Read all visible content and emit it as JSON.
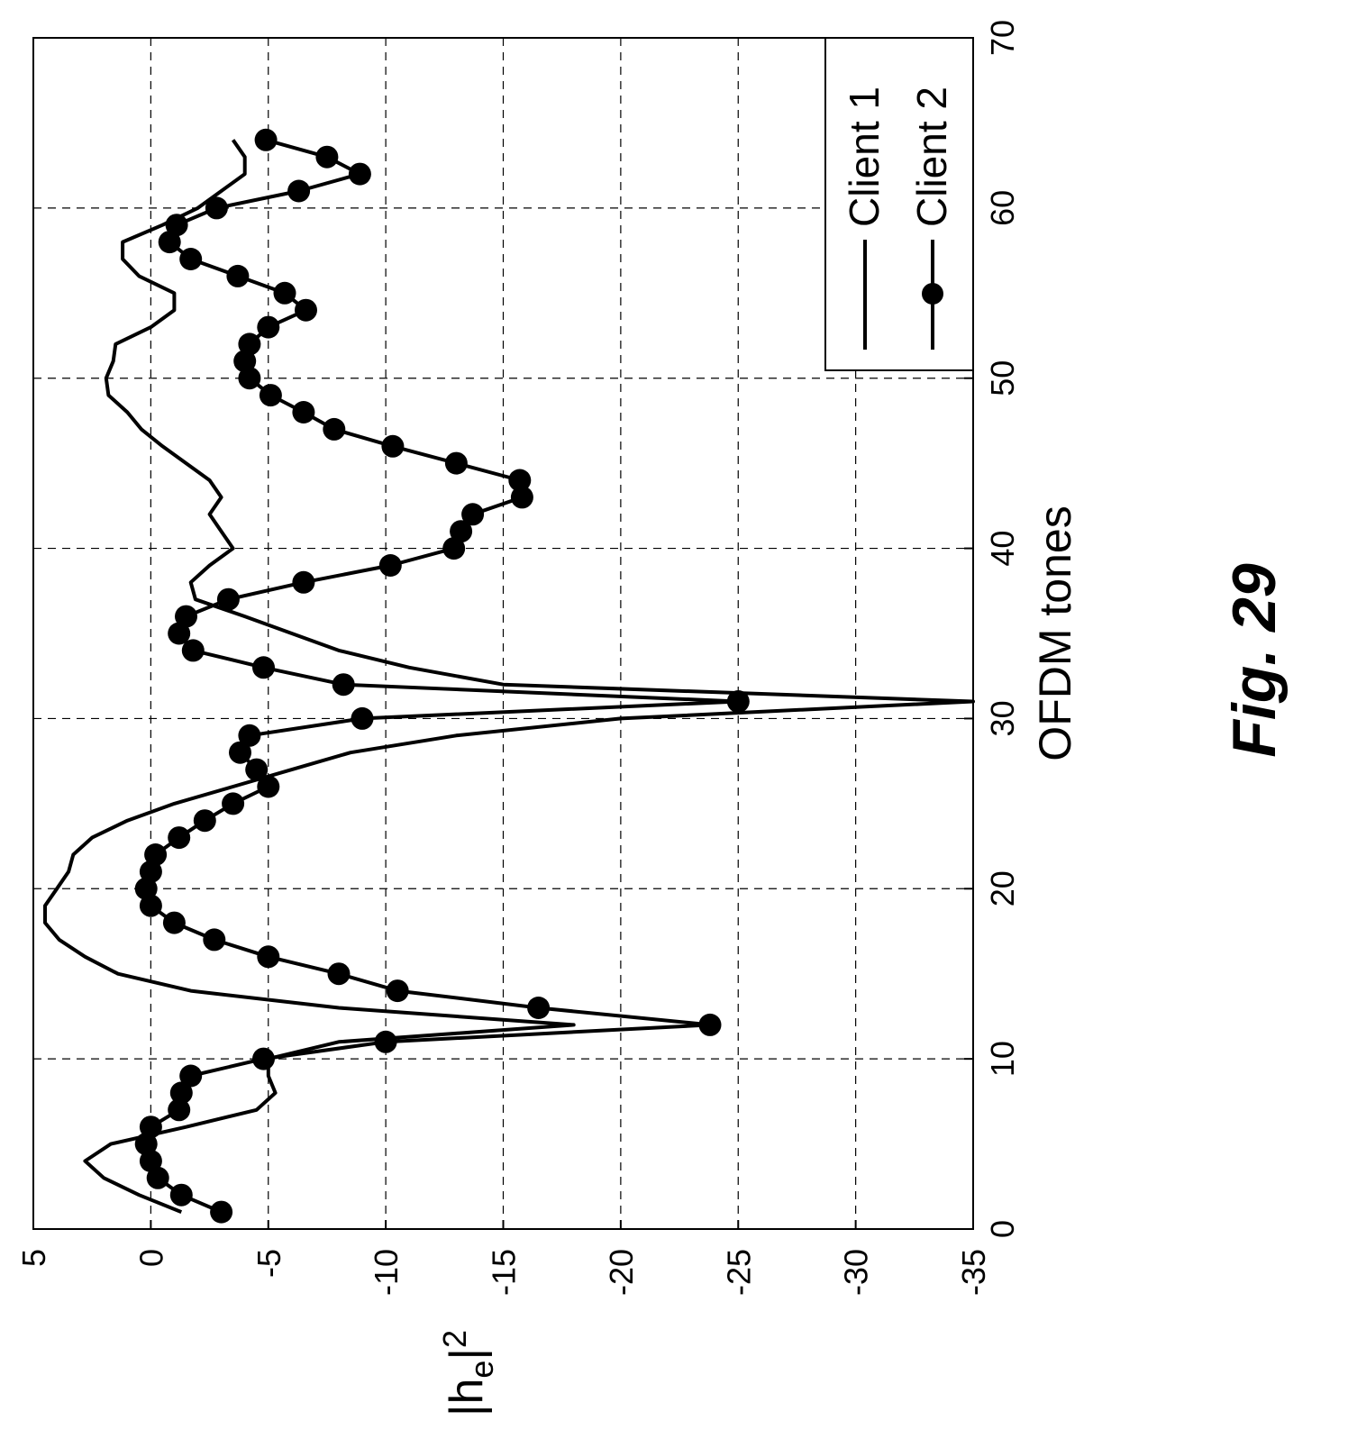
{
  "figure_label": "Fig. 29",
  "chart_data": {
    "type": "line",
    "orientation": "rotated-90-clockwise",
    "xlabel": "OFDM tones",
    "ylabel": "|h_e|^2",
    "ylabel_base": "|h",
    "ylabel_sub": "e",
    "ylabel_tail": "|",
    "ylabel_sup": "2",
    "xlim": [
      0,
      70
    ],
    "ylim": [
      -35,
      5
    ],
    "xticks": [
      0,
      10,
      20,
      30,
      40,
      50,
      60,
      70
    ],
    "yticks": [
      5,
      0,
      -5,
      -10,
      -15,
      -20,
      -25,
      -30,
      -35
    ],
    "grid": true,
    "legend_position": "top-right",
    "colors": {
      "line": "#000000",
      "grid": "#000000",
      "background": "#ffffff"
    },
    "series": [
      {
        "name": "Client 1",
        "marker": "none",
        "x": [
          1,
          2,
          3,
          4,
          5,
          6,
          7,
          8,
          9,
          10,
          11,
          12,
          13,
          14,
          15,
          16,
          17,
          18,
          19,
          20,
          21,
          22,
          23,
          24,
          25,
          26,
          27,
          28,
          29,
          30,
          31,
          32,
          33,
          34,
          35,
          36,
          37,
          38,
          39,
          40,
          41,
          42,
          43,
          44,
          45,
          46,
          47,
          48,
          49,
          50,
          51,
          52,
          53,
          54,
          55,
          56,
          57,
          58,
          59,
          60,
          61,
          62,
          63,
          64
        ],
        "y": [
          -1.3,
          0.5,
          2.0,
          2.8,
          1.7,
          -1.5,
          -4.5,
          -5.3,
          -5.0,
          -5.0,
          -8.0,
          -18.0,
          -8.0,
          -1.7,
          1.4,
          2.8,
          3.9,
          4.5,
          4.5,
          4.0,
          3.5,
          3.3,
          2.5,
          1.0,
          -1.0,
          -3.5,
          -6.0,
          -8.5,
          -13.0,
          -20.0,
          -35.0,
          -15.0,
          -11.0,
          -8.0,
          -6.0,
          -4.0,
          -1.9,
          -1.7,
          -2.5,
          -3.5,
          -3.0,
          -2.5,
          -3.0,
          -2.5,
          -1.5,
          -0.5,
          0.4,
          1.0,
          1.8,
          1.9,
          1.6,
          1.5,
          0.0,
          -1.0,
          -1.0,
          0.5,
          1.2,
          1.2,
          -0.5,
          -2.0,
          -3.0,
          -4.0,
          -4.0,
          -3.5
        ]
      },
      {
        "name": "Client 2",
        "marker": "filled-circle",
        "x": [
          1,
          2,
          3,
          4,
          5,
          6,
          7,
          8,
          9,
          10,
          11,
          12,
          13,
          14,
          15,
          16,
          17,
          18,
          19,
          20,
          21,
          22,
          23,
          24,
          25,
          26,
          27,
          28,
          29,
          30,
          31,
          32,
          33,
          34,
          35,
          36,
          37,
          38,
          39,
          40,
          41,
          42,
          43,
          44,
          45,
          46,
          47,
          48,
          49,
          50,
          51,
          52,
          53,
          54,
          55,
          56,
          57,
          58,
          59,
          60,
          61,
          62,
          63,
          64
        ],
        "y": [
          -3.0,
          -1.3,
          -0.3,
          0.0,
          0.2,
          0.0,
          -1.2,
          -1.3,
          -1.7,
          -4.8,
          -10.0,
          -23.8,
          -16.5,
          -10.5,
          -8.0,
          -5.0,
          -2.7,
          -1.0,
          0.0,
          0.2,
          0.0,
          -0.2,
          -1.2,
          -2.3,
          -3.5,
          -5.0,
          -4.5,
          -3.8,
          -4.2,
          -9.0,
          -25.0,
          -8.2,
          -4.8,
          -1.8,
          -1.2,
          -1.5,
          -3.3,
          -6.5,
          -10.2,
          -12.9,
          -13.2,
          -13.7,
          -15.8,
          -15.7,
          -13.0,
          -10.3,
          -7.8,
          -6.5,
          -5.1,
          -4.2,
          -4.0,
          -4.2,
          -5.0,
          -6.6,
          -5.7,
          -3.7,
          -1.7,
          -0.8,
          -1.1,
          -2.8,
          -6.3,
          -8.9,
          -7.5,
          -4.9
        ]
      }
    ]
  }
}
